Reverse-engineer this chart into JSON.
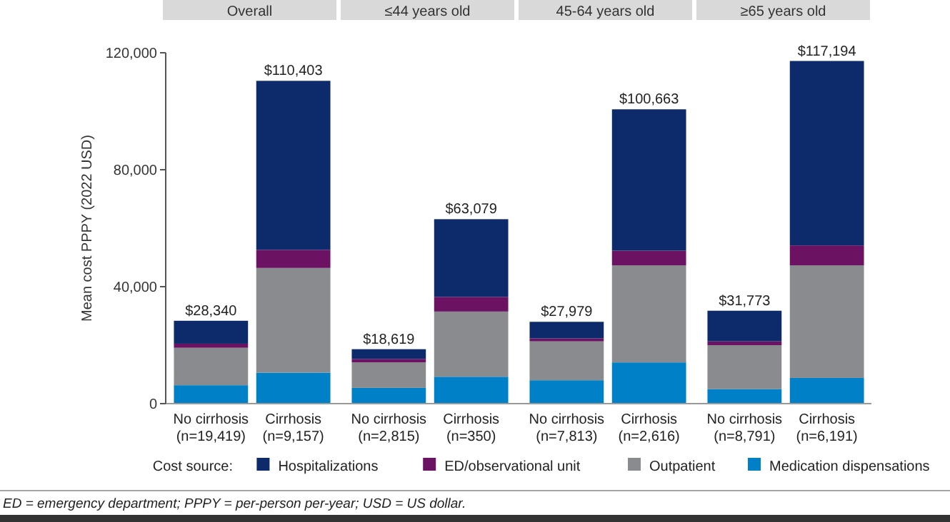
{
  "chart_data": [
    {
      "type": "bar",
      "title": "Overall",
      "stacked": true,
      "ylabel": "Mean cost PPPY (2022 USD)",
      "ylim": [
        0,
        120000
      ],
      "yticks": [
        {
          "value": 0,
          "label": "0"
        },
        {
          "value": 40000,
          "label": "40,000"
        },
        {
          "value": 80000,
          "label": "80,000"
        },
        {
          "value": 120000,
          "label": "120,000"
        }
      ],
      "categories": [
        "No cirrhosis\n(n=19,419)",
        "Cirrhosis\n(n=9,157)"
      ],
      "legend": "bottom",
      "legend_title": "Cost source:",
      "totals": [
        "$28,340",
        "$110,403"
      ],
      "series": [
        {
          "name": "Medication dispensations",
          "color": "#0080c6",
          "values": [
            6300,
            10600
          ]
        },
        {
          "name": "Outpatient",
          "color": "#898b8e",
          "values": [
            12800,
            35800
          ]
        },
        {
          "name": "ED/observational unit",
          "color": "#6b1263",
          "values": [
            1400,
            6200
          ]
        },
        {
          "name": "Hospitalizations",
          "color": "#0d2a6b",
          "values": [
            7840,
            57803
          ]
        }
      ],
      "annotations": [
        "ED = emergency department; PPPY = per-person per-year; USD = US dollar."
      ]
    },
    {
      "type": "bar",
      "title": "≤44 years old",
      "stacked": true,
      "ylim": [
        0,
        120000
      ],
      "tick_labels": "x",
      "categories": [
        "No cirrhosis\n(n=2,815)",
        "Cirrhosis\n(n=350)"
      ],
      "totals": [
        "$18,619",
        "$63,079"
      ],
      "series": [
        {
          "color": "#0080c6",
          "values": [
            5400,
            9200
          ]
        },
        {
          "color": "#898b8e",
          "values": [
            8700,
            22300
          ]
        },
        {
          "color": "#6b1263",
          "values": [
            1200,
            5000
          ]
        },
        {
          "color": "#0d2a6b",
          "values": [
            3319,
            26579
          ]
        }
      ]
    },
    {
      "type": "bar",
      "title": "45-64 years old",
      "stacked": true,
      "ylim": [
        0,
        120000
      ],
      "tick_labels": "x",
      "categories": [
        "No cirrhosis\n(n=7,813)",
        "Cirrhosis\n(n=2,616)"
      ],
      "totals": [
        "$27,979",
        "$100,663"
      ],
      "series": [
        {
          "color": "#0080c6",
          "values": [
            8000,
            14100
          ]
        },
        {
          "color": "#898b8e",
          "values": [
            13300,
            33200
          ]
        },
        {
          "color": "#6b1263",
          "values": [
            1000,
            5000
          ]
        },
        {
          "color": "#0d2a6b",
          "values": [
            5679,
            48363
          ]
        }
      ]
    },
    {
      "type": "bar",
      "title": "≥65 years old",
      "stacked": true,
      "ylim": [
        0,
        120000
      ],
      "tick_labels": "x",
      "categories": [
        "No cirrhosis\n(n=8,791)",
        "Cirrhosis\n(n=6,191)"
      ],
      "totals": [
        "$31,773",
        "$117,194"
      ],
      "series": [
        {
          "color": "#0080c6",
          "values": [
            5000,
            8800
          ]
        },
        {
          "color": "#898b8e",
          "values": [
            15000,
            38500
          ]
        },
        {
          "color": "#6b1263",
          "values": [
            1300,
            6800
          ]
        },
        {
          "color": "#0d2a6b",
          "values": [
            10473,
            63094
          ]
        }
      ]
    }
  ]
}
